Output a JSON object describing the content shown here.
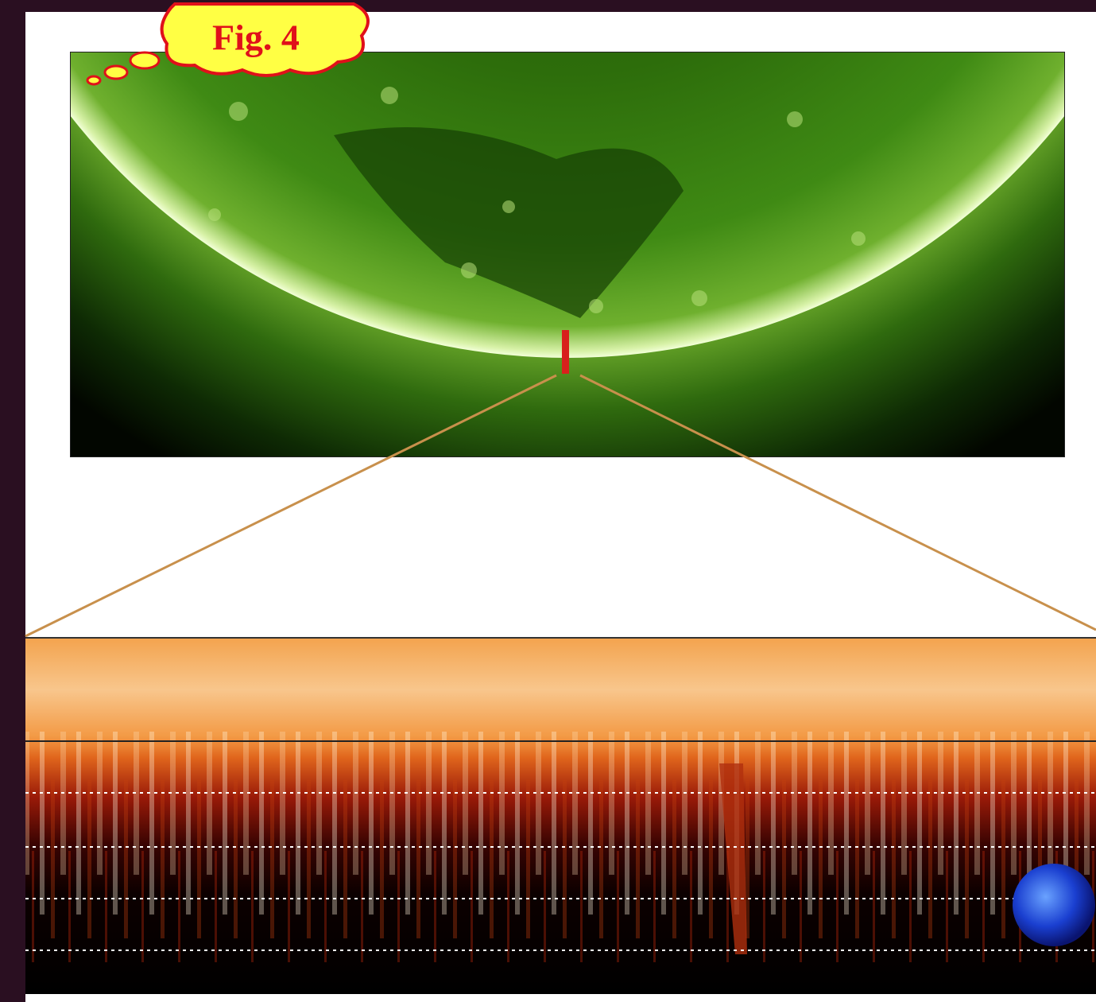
{
  "label": "Fig. 4"
}
